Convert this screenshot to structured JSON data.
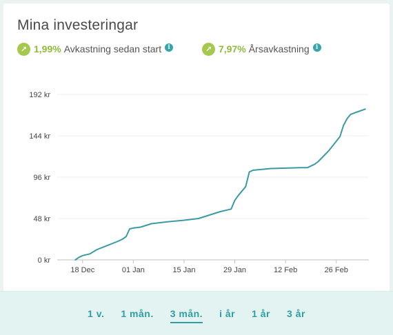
{
  "title": "Mina investeringar",
  "stats": [
    {
      "value": "1,99%",
      "label": "Avkastning sedan start",
      "icon": "arrow-up-right-icon"
    },
    {
      "value": "7,97%",
      "label": "Årsavkastning",
      "icon": "arrow-up-right-icon"
    }
  ],
  "colors": {
    "accent": "#2e9ea3",
    "positive": "#a4c94c",
    "line": "#3a9aa3"
  },
  "chart_data": {
    "type": "line",
    "title": "",
    "xlabel": "",
    "ylabel": "",
    "yunit": "kr",
    "ylim": [
      0,
      192
    ],
    "yticks": [
      0,
      48,
      96,
      144,
      192
    ],
    "ytick_labels": [
      "0 kr",
      "48 kr",
      "96 kr",
      "144 kr",
      "192 kr"
    ],
    "xticks": [
      "2017-12-18",
      "2018-01-01",
      "2018-01-15",
      "2018-01-29",
      "2018-02-12",
      "2018-02-26"
    ],
    "xtick_labels": [
      "18 Dec",
      "01 Jan",
      "15 Jan",
      "29 Jan",
      "12 Feb",
      "26 Feb"
    ],
    "grid": true,
    "series": [
      {
        "points": [
          [
            "2017-12-16",
            0
          ],
          [
            "2017-12-17",
            3
          ],
          [
            "2017-12-18",
            5
          ],
          [
            "2017-12-20",
            7
          ],
          [
            "2017-12-22",
            12
          ],
          [
            "2017-12-25",
            17
          ],
          [
            "2017-12-28",
            22
          ],
          [
            "2017-12-29",
            24
          ],
          [
            "2017-12-30",
            27
          ],
          [
            "2017-12-31",
            36
          ],
          [
            "2018-01-01",
            37
          ],
          [
            "2018-01-03",
            38
          ],
          [
            "2018-01-06",
            42
          ],
          [
            "2018-01-10",
            44
          ],
          [
            "2018-01-15",
            46
          ],
          [
            "2018-01-19",
            48
          ],
          [
            "2018-01-22",
            52
          ],
          [
            "2018-01-25",
            56
          ],
          [
            "2018-01-28",
            59
          ],
          [
            "2018-01-29",
            69
          ],
          [
            "2018-01-30",
            75
          ],
          [
            "2018-02-01",
            85
          ],
          [
            "2018-02-02",
            102
          ],
          [
            "2018-02-03",
            104
          ],
          [
            "2018-02-08",
            106
          ],
          [
            "2018-02-16",
            107
          ],
          [
            "2018-02-18",
            107
          ],
          [
            "2018-02-20",
            111
          ],
          [
            "2018-02-21",
            114
          ],
          [
            "2018-02-24",
            127
          ],
          [
            "2018-02-27",
            143
          ],
          [
            "2018-02-28",
            156
          ],
          [
            "2018-03-01",
            164
          ],
          [
            "2018-03-02",
            169
          ],
          [
            "2018-03-04",
            172
          ],
          [
            "2018-03-06",
            175
          ]
        ]
      }
    ]
  },
  "ranges": [
    {
      "label": "1 v.",
      "active": false
    },
    {
      "label": "1 mån.",
      "active": false
    },
    {
      "label": "3 mån.",
      "active": true
    },
    {
      "label": "i år",
      "active": false
    },
    {
      "label": "1 år",
      "active": false
    },
    {
      "label": "3 år",
      "active": false
    }
  ]
}
